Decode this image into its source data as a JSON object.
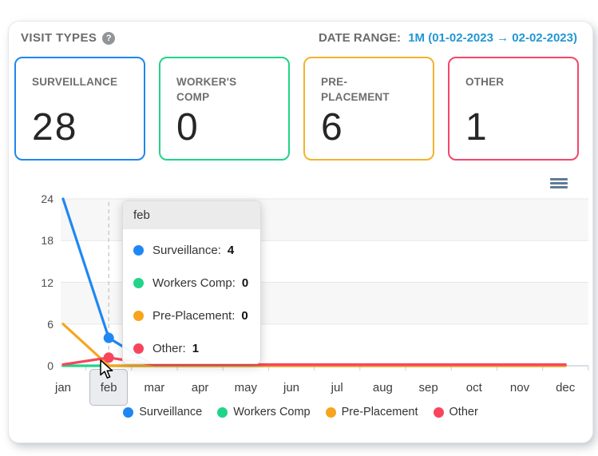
{
  "header": {
    "title": "VISIT TYPES",
    "help_glyph": "?",
    "date_range_label": "DATE RANGE:",
    "date_range_value": "1M (01-02-2023 → 02-02-2023)",
    "date_range_color": "#2297d4"
  },
  "summary_cards": [
    {
      "label": "SURVEILLANCE",
      "value": "28",
      "color": "#1e87f0"
    },
    {
      "label": "WORKER'S COMP",
      "value": "0",
      "color": "#21d488"
    },
    {
      "label": "PRE-PLACEMENT",
      "value": "6",
      "color": "#f2b32c"
    },
    {
      "label": "OTHER",
      "value": "1",
      "color": "#f2476a"
    }
  ],
  "chart_data": {
    "type": "line",
    "x": [
      "jan",
      "feb",
      "mar",
      "apr",
      "may",
      "jun",
      "jul",
      "aug",
      "sep",
      "oct",
      "nov",
      "dec"
    ],
    "series": [
      {
        "name": "Surveillance",
        "color": "#1f87f3",
        "values": [
          24,
          4,
          0,
          0,
          0,
          0,
          0,
          0,
          0,
          0,
          0,
          0
        ]
      },
      {
        "name": "Workers Comp",
        "color": "#21d488",
        "values": [
          0,
          0,
          0,
          0,
          0,
          0,
          0,
          0,
          0,
          0,
          0,
          0
        ]
      },
      {
        "name": "Pre-Placement",
        "color": "#f7a51d",
        "values": [
          6,
          0,
          0,
          0,
          0,
          0,
          0,
          0,
          0,
          0,
          0,
          0
        ]
      },
      {
        "name": "Other",
        "color": "#f8455c",
        "values": [
          0,
          1,
          0,
          0,
          0,
          0,
          0,
          0,
          0,
          0,
          0,
          0
        ]
      }
    ],
    "yticks": [
      0,
      6,
      12,
      18,
      24
    ],
    "ylim": [
      0,
      24
    ],
    "grid": "horizontal gridlines with alternating gray bands",
    "legend_position": "bottom",
    "highlighted_category": "feb",
    "menu_icon": "hamburger-icon"
  },
  "tooltip": {
    "title": "feb",
    "rows": [
      {
        "label": "Surveillance:",
        "value": "4",
        "color": "#1f87f3"
      },
      {
        "label": "Workers Comp:",
        "value": "0",
        "color": "#21d488"
      },
      {
        "label": "Pre-Placement:",
        "value": "0",
        "color": "#f7a51d"
      },
      {
        "label": "Other:",
        "value": "1",
        "color": "#f8455c"
      }
    ]
  }
}
